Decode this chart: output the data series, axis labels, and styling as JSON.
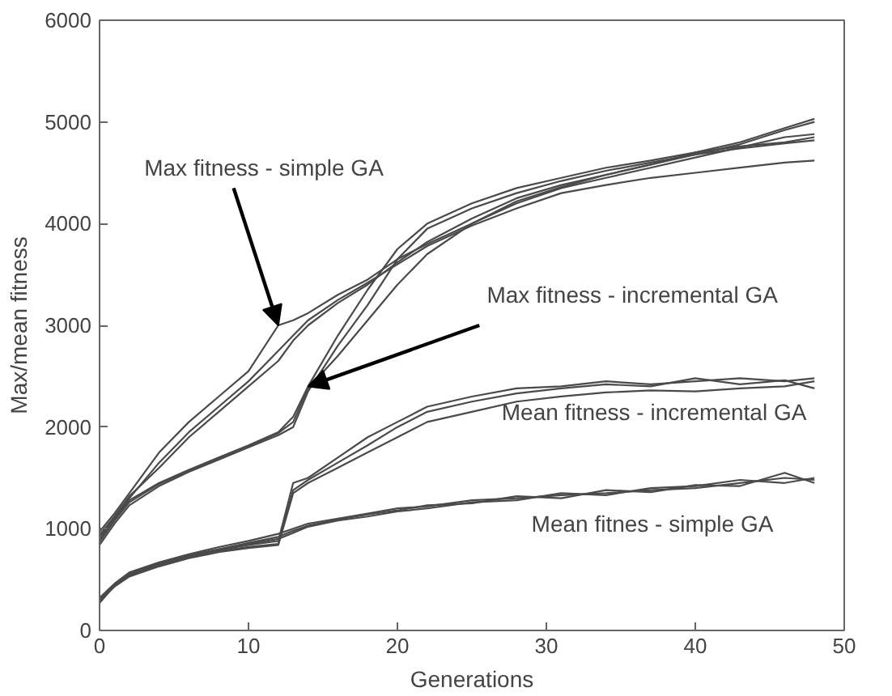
{
  "chart_data": {
    "type": "line",
    "xlabel": "Generations",
    "ylabel": "Max/mean fitness",
    "xlim": [
      0,
      50
    ],
    "xticks": [
      0,
      10,
      20,
      30,
      40,
      50
    ],
    "ylim": [
      0,
      6000
    ],
    "yticks": [
      0,
      1000,
      2000,
      3000,
      4000,
      5000,
      6000
    ],
    "grid": false,
    "line_style": "solid",
    "x": [
      0,
      1,
      2,
      4,
      6,
      8,
      10,
      12,
      13,
      14,
      16,
      18,
      20,
      22,
      25,
      28,
      31,
      34,
      37,
      40,
      43,
      46,
      48
    ],
    "series": [
      {
        "color": "#4a4a4a",
        "values": [
          970,
          1150,
          1350,
          1750,
          2050,
          2300,
          2550,
          3000,
          3050,
          3120,
          3300,
          3450,
          3650,
          3800,
          4000,
          4200,
          4350,
          4450,
          4550,
          4650,
          4750,
          4850,
          4880
        ]
      },
      {
        "color": "#4a4a4a",
        "values": [
          920,
          1100,
          1300,
          1650,
          1950,
          2200,
          2450,
          2750,
          2900,
          3050,
          3250,
          3420,
          3600,
          3780,
          3980,
          4150,
          4300,
          4380,
          4450,
          4500,
          4550,
          4600,
          4620
        ]
      },
      {
        "color": "#4a4a4a",
        "values": [
          940,
          1120,
          1320,
          1600,
          1900,
          2150,
          2400,
          2650,
          2850,
          3000,
          3220,
          3400,
          3620,
          3820,
          4050,
          4250,
          4380,
          4480,
          4580,
          4700,
          4800,
          4940,
          5030
        ]
      },
      {
        "color": "#4a4a4a",
        "values": [
          890,
          1100,
          1280,
          1450,
          1580,
          1700,
          1820,
          1950,
          2100,
          2400,
          2900,
          3350,
          3750,
          4000,
          4200,
          4350,
          4450,
          4550,
          4620,
          4700,
          4760,
          4800,
          4850
        ]
      },
      {
        "color": "#4a4a4a",
        "values": [
          840,
          1050,
          1230,
          1420,
          1560,
          1680,
          1800,
          1920,
          2000,
          2350,
          2800,
          3200,
          3650,
          3950,
          4150,
          4300,
          4420,
          4520,
          4600,
          4680,
          4740,
          4790,
          4820
        ]
      },
      {
        "color": "#4a4a4a",
        "values": [
          870,
          1080,
          1260,
          1440,
          1570,
          1690,
          1810,
          1940,
          2050,
          2380,
          2700,
          3050,
          3400,
          3700,
          4000,
          4220,
          4360,
          4480,
          4580,
          4680,
          4780,
          4920,
          5000
        ]
      },
      {
        "color": "#4a4a4a",
        "values": [
          310,
          450,
          550,
          650,
          730,
          790,
          840,
          880,
          1450,
          1500,
          1700,
          1900,
          2050,
          2200,
          2300,
          2380,
          2400,
          2450,
          2420,
          2450,
          2480,
          2450,
          2480
        ]
      },
      {
        "color": "#4a4a4a",
        "values": [
          300,
          440,
          540,
          640,
          720,
          780,
          820,
          850,
          1380,
          1480,
          1650,
          1820,
          2000,
          2150,
          2250,
          2330,
          2380,
          2420,
          2400,
          2480,
          2420,
          2460,
          2380
        ]
      },
      {
        "color": "#4a4a4a",
        "values": [
          290,
          430,
          530,
          630,
          710,
          770,
          810,
          840,
          1350,
          1450,
          1600,
          1750,
          1900,
          2050,
          2150,
          2250,
          2300,
          2340,
          2360,
          2350,
          2380,
          2400,
          2450
        ]
      },
      {
        "color": "#4a4a4a",
        "values": [
          320,
          460,
          570,
          670,
          750,
          820,
          880,
          950,
          1000,
          1050,
          1100,
          1150,
          1200,
          1220,
          1280,
          1300,
          1330,
          1350,
          1380,
          1400,
          1450,
          1500,
          1480
        ]
      },
      {
        "color": "#4a4a4a",
        "values": [
          280,
          450,
          560,
          660,
          740,
          800,
          860,
          920,
          980,
          1030,
          1090,
          1140,
          1180,
          1230,
          1250,
          1320,
          1300,
          1380,
          1360,
          1430,
          1420,
          1550,
          1450
        ]
      },
      {
        "color": "#4a4a4a",
        "values": [
          270,
          440,
          550,
          650,
          730,
          790,
          850,
          900,
          960,
          1020,
          1080,
          1120,
          1170,
          1200,
          1260,
          1280,
          1350,
          1330,
          1400,
          1420,
          1480,
          1450,
          1500
        ]
      }
    ],
    "annotations": [
      {
        "text": "Max fitness - simple GA",
        "x": 12,
        "y": 3000
      },
      {
        "text": "Max fitness - incremental GA",
        "x": 14,
        "y": 2400
      },
      "Mean fitness - incremental GA",
      "Mean fitnes - simple GA"
    ]
  }
}
